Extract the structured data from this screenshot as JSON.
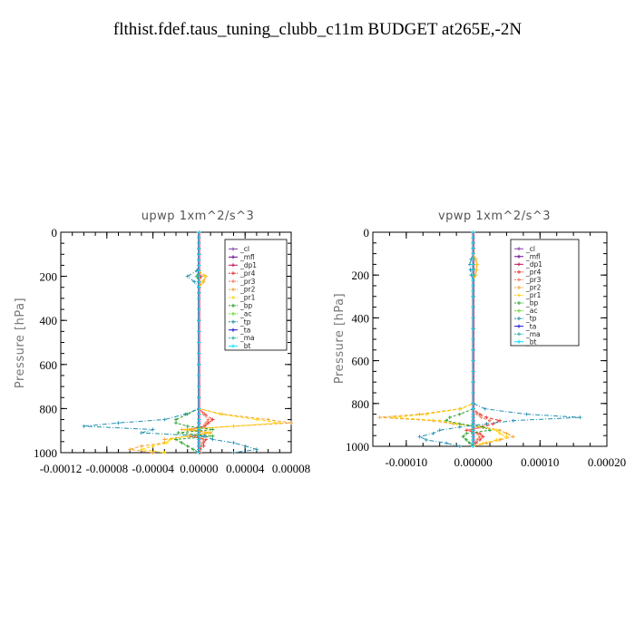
{
  "title": "flthist.fdef.taus_tuning_clubb_c11m  BUDGET at265E,-2N",
  "legend_names": [
    "_cl",
    "_mfl",
    "_dp1",
    "_pr4",
    "_pr3",
    "_pr2",
    "_pr1",
    "_bp",
    "_ac",
    "_tp",
    "_ta",
    "_ma",
    "_bt"
  ],
  "colors": {
    "_cl": "#8a3fa8",
    "_mfl": "#6a0f8e",
    "_dp1": "#c2185b",
    "_pr4": "#e8312a",
    "_pr3": "#f07a5a",
    "_pr2": "#f4a030",
    "_pr1": "#ffd400",
    "_bp": "#2aa02a",
    "_ac": "#66dd22",
    "_tp": "#1f8fb0",
    "_ta": "#1a1ad0",
    "_ma": "#20b2aa",
    "_bt": "#00e5ff"
  },
  "chart_data": [
    {
      "type": "line",
      "title": "upwp   1xm^2/s^3",
      "ylabel": "Pressure [hPa]",
      "xlim": [
        -0.00012,
        8e-05
      ],
      "ylim": [
        1000,
        0
      ],
      "xticks": [
        "-0.00012",
        "-0.00008",
        "-0.00004",
        "0.00000",
        "0.00004",
        "0.00008"
      ],
      "xtick_values": [
        -0.00012,
        -8e-05,
        -4e-05,
        0.0,
        4e-05,
        8e-05
      ],
      "yticks": [
        "0",
        "200",
        "400",
        "600",
        "800",
        "1000"
      ],
      "ytick_values": [
        0,
        200,
        400,
        600,
        800,
        1000
      ],
      "legend": "top-right",
      "pressure": [
        0,
        25,
        50,
        75,
        100,
        125,
        150,
        175,
        200,
        225,
        250,
        275,
        300,
        350,
        400,
        450,
        500,
        550,
        600,
        650,
        700,
        750,
        800,
        825,
        850,
        865,
        880,
        895,
        910,
        925,
        940,
        955,
        970,
        985,
        1000
      ],
      "series": [
        {
          "name": "_cl",
          "values": [
            0,
            0,
            0,
            0,
            0,
            0,
            0,
            0,
            0,
            0,
            0,
            0,
            0,
            0,
            0,
            0,
            0,
            0,
            0,
            0,
            0,
            0,
            0,
            0,
            0,
            0,
            0,
            0,
            0,
            0,
            0,
            0,
            0,
            0,
            0
          ]
        },
        {
          "name": "_mfl",
          "values": [
            0,
            0,
            0,
            0,
            0,
            0,
            0,
            0,
            0,
            0,
            0,
            0,
            0,
            0,
            0,
            0,
            0,
            0,
            0,
            0,
            0,
            0,
            0,
            0,
            0,
            0,
            0,
            0,
            0,
            0,
            0,
            0,
            0,
            0,
            0
          ]
        },
        {
          "name": "_dp1",
          "values": [
            0,
            0,
            0,
            0,
            0,
            0,
            0,
            0,
            0,
            0,
            0,
            0,
            0,
            0,
            0,
            0,
            0,
            0,
            0,
            0,
            0,
            0,
            0,
            0,
            0,
            0,
            0,
            0,
            0,
            0,
            0,
            0,
            0,
            0,
            0
          ]
        },
        {
          "name": "_pr4",
          "values": [
            0,
            0,
            0,
            0,
            0,
            0,
            0,
            0,
            2e-06,
            0,
            0,
            0,
            0,
            0,
            0,
            0,
            0,
            0,
            0,
            0,
            0,
            0,
            0,
            5e-06,
            1.2e-05,
            8e-06,
            5e-06,
            -1e-05,
            1e-05,
            -8e-06,
            6e-06,
            4e-06,
            4e-06,
            1e-06,
            1e-06
          ]
        },
        {
          "name": "_pr3",
          "values": [
            0,
            0,
            0,
            0,
            0,
            0,
            0,
            0,
            1e-06,
            0,
            0,
            0,
            0,
            0,
            0,
            0,
            0,
            0,
            0,
            0,
            0,
            0,
            0,
            4e-06,
            8e-06,
            6e-06,
            4e-06,
            -6e-06,
            6e-06,
            -4e-06,
            4e-06,
            3e-06,
            2e-06,
            1e-06,
            0
          ]
        },
        {
          "name": "_pr2",
          "values": [
            0,
            0,
            0,
            0,
            0,
            0,
            0,
            0,
            6e-06,
            4e-06,
            0,
            0,
            0,
            0,
            0,
            0,
            0,
            0,
            0,
            0,
            0,
            0,
            0,
            2e-05,
            6e-05,
            8e-05,
            3e-05,
            -1.5e-05,
            1e-05,
            -1e-05,
            -3e-05,
            -3e-05,
            -5e-05,
            -6e-05,
            -4e-05
          ]
        },
        {
          "name": "_pr1",
          "values": [
            0,
            0,
            0,
            0,
            0,
            0,
            0,
            0,
            5e-06,
            3e-06,
            0,
            0,
            0,
            0,
            0,
            0,
            0,
            0,
            0,
            0,
            0,
            0,
            0,
            1.8e-05,
            5e-05,
            7e-05,
            3e-05,
            -1.2e-05,
            8e-06,
            -1e-05,
            -2.5e-05,
            -2.8e-05,
            -4e-05,
            -5e-05,
            -3e-05
          ]
        },
        {
          "name": "_bp",
          "values": [
            0,
            0,
            0,
            0,
            0,
            0,
            0,
            0,
            -2e-06,
            0,
            0,
            0,
            0,
            0,
            0,
            0,
            0,
            0,
            0,
            0,
            0,
            0,
            0,
            -1e-05,
            -2e-05,
            -2e-05,
            -1e-05,
            1.2e-05,
            -1.8e-05,
            1.2e-05,
            -2e-05,
            -1.5e-05,
            -1e-05,
            -5e-06,
            0
          ]
        },
        {
          "name": "_ac",
          "values": [
            0,
            0,
            0,
            0,
            0,
            0,
            0,
            0,
            0,
            0,
            0,
            0,
            0,
            0,
            0,
            0,
            0,
            0,
            0,
            0,
            0,
            0,
            0,
            0,
            0,
            0,
            0,
            0,
            0,
            0,
            0,
            0,
            0,
            0,
            0
          ]
        },
        {
          "name": "_tp",
          "values": [
            0,
            0,
            0,
            0,
            0,
            0,
            0,
            -2e-06,
            -1e-05,
            -4e-06,
            0,
            0,
            0,
            0,
            0,
            0,
            0,
            0,
            0,
            0,
            0,
            0,
            0,
            -1.2e-05,
            -3e-05,
            -7e-05,
            -0.0001,
            -4e-05,
            -5e-05,
            5e-06,
            1.2e-05,
            3e-05,
            4e-05,
            5e-05,
            3e-05
          ]
        },
        {
          "name": "_ta",
          "values": [
            0,
            0,
            0,
            0,
            0,
            0,
            0,
            0,
            0,
            0,
            0,
            0,
            0,
            0,
            0,
            0,
            0,
            0,
            0,
            0,
            0,
            0,
            0,
            0,
            0,
            0,
            0,
            0,
            0,
            0,
            0,
            0,
            0,
            0,
            0
          ]
        },
        {
          "name": "_ma",
          "values": [
            0,
            0,
            0,
            0,
            0,
            0,
            0,
            0,
            0,
            0,
            0,
            0,
            0,
            0,
            0,
            0,
            0,
            0,
            0,
            0,
            0,
            0,
            0,
            0,
            0,
            0,
            0,
            0,
            0,
            0,
            0,
            0,
            0,
            0,
            0
          ]
        },
        {
          "name": "_bt",
          "values": [
            0,
            0,
            0,
            0,
            0,
            0,
            0,
            0,
            0,
            0,
            0,
            0,
            0,
            0,
            0,
            0,
            0,
            0,
            0,
            0,
            0,
            0,
            0,
            0,
            0,
            0,
            0,
            0,
            0,
            0,
            0,
            0,
            0,
            0,
            0
          ]
        }
      ]
    },
    {
      "type": "line",
      "title": "vpwp   1xm^2/s^3",
      "ylabel": "Pressure [hPa]",
      "xlim": [
        -0.00015,
        0.0002
      ],
      "ylim": [
        1000,
        0
      ],
      "xticks": [
        "-0.00010",
        "0.00000",
        "0.00010",
        "0.00020"
      ],
      "xtick_values": [
        -0.0001,
        0.0,
        0.0001,
        0.0002
      ],
      "yticks": [
        "0",
        "200",
        "400",
        "600",
        "800",
        "1000"
      ],
      "ytick_values": [
        0,
        200,
        400,
        600,
        800,
        1000
      ],
      "legend": "top-right",
      "pressure": [
        0,
        25,
        50,
        75,
        100,
        125,
        150,
        175,
        200,
        225,
        250,
        275,
        300,
        350,
        400,
        450,
        500,
        550,
        600,
        650,
        700,
        750,
        800,
        825,
        850,
        865,
        880,
        895,
        910,
        925,
        940,
        955,
        970,
        985,
        1000
      ],
      "series": [
        {
          "name": "_cl",
          "values": [
            0,
            0,
            0,
            0,
            0,
            0,
            0,
            0,
            0,
            0,
            0,
            0,
            0,
            0,
            0,
            0,
            0,
            0,
            0,
            0,
            0,
            0,
            0,
            0,
            0,
            0,
            0,
            0,
            0,
            0,
            0,
            0,
            0,
            0,
            0
          ]
        },
        {
          "name": "_mfl",
          "values": [
            0,
            0,
            0,
            0,
            0,
            0,
            0,
            0,
            0,
            0,
            0,
            0,
            0,
            0,
            0,
            0,
            0,
            0,
            0,
            0,
            0,
            0,
            0,
            0,
            0,
            0,
            0,
            0,
            0,
            0,
            0,
            0,
            0,
            0,
            0
          ]
        },
        {
          "name": "_dp1",
          "values": [
            0,
            0,
            0,
            0,
            0,
            0,
            0,
            0,
            0,
            0,
            0,
            0,
            0,
            0,
            0,
            0,
            0,
            0,
            0,
            0,
            0,
            0,
            0,
            0,
            0,
            0,
            0,
            0,
            0,
            0,
            0,
            0,
            0,
            0,
            0
          ]
        },
        {
          "name": "_pr4",
          "values": [
            0,
            0,
            0,
            0,
            0,
            0,
            0,
            0,
            0,
            0,
            0,
            0,
            0,
            0,
            0,
            0,
            0,
            0,
            0,
            0,
            0,
            0,
            0,
            0,
            1e-05,
            2e-05,
            4e-05,
            3e-05,
            1.5e-05,
            -1e-05,
            1e-05,
            1.5e-05,
            1e-05,
            4e-06,
            0
          ]
        },
        {
          "name": "_pr3",
          "values": [
            0,
            0,
            0,
            0,
            0,
            0,
            0,
            0,
            0,
            0,
            0,
            0,
            0,
            0,
            0,
            0,
            0,
            0,
            0,
            0,
            0,
            0,
            0,
            0,
            6e-06,
            1.2e-05,
            2.5e-05,
            2e-05,
            1e-05,
            -6e-06,
            6e-06,
            1e-05,
            6e-06,
            2e-06,
            0
          ]
        },
        {
          "name": "_pr2",
          "values": [
            0,
            0,
            0,
            0,
            0,
            4e-06,
            6e-06,
            5e-06,
            4e-06,
            0,
            0,
            0,
            0,
            0,
            0,
            0,
            0,
            0,
            0,
            0,
            0,
            0,
            0,
            -2e-05,
            -8e-05,
            -0.00014,
            -6e-05,
            -3e-05,
            1.5e-05,
            4e-05,
            5e-05,
            6e-05,
            4e-05,
            2e-05,
            0
          ]
        },
        {
          "name": "_pr1",
          "values": [
            0,
            0,
            0,
            0,
            0,
            3e-06,
            5e-06,
            4e-06,
            3e-06,
            0,
            0,
            0,
            0,
            0,
            0,
            0,
            0,
            0,
            0,
            0,
            0,
            0,
            0,
            -1.8e-05,
            -7e-05,
            -0.00012,
            -5e-05,
            -2.5e-05,
            1.2e-05,
            3.5e-05,
            4e-05,
            5e-05,
            3.5e-05,
            1.5e-05,
            0
          ]
        },
        {
          "name": "_bp",
          "values": [
            0,
            0,
            0,
            0,
            0,
            0,
            0,
            0,
            0,
            0,
            0,
            0,
            0,
            0,
            0,
            0,
            0,
            0,
            0,
            0,
            0,
            0,
            0,
            0,
            -2e-05,
            -3.5e-05,
            -4e-05,
            -2e-05,
            1.5e-05,
            2.5e-05,
            -1e-05,
            -1.5e-05,
            -1e-05,
            -5e-06,
            0
          ]
        },
        {
          "name": "_ac",
          "values": [
            0,
            0,
            0,
            0,
            0,
            0,
            0,
            0,
            0,
            0,
            0,
            0,
            0,
            0,
            0,
            0,
            0,
            0,
            0,
            0,
            0,
            0,
            0,
            0,
            0,
            0,
            0,
            0,
            0,
            0,
            0,
            0,
            0,
            0,
            0
          ]
        },
        {
          "name": "_tp",
          "values": [
            0,
            0,
            0,
            0,
            0,
            -3e-06,
            -5e-06,
            -4e-06,
            -3e-06,
            0,
            0,
            0,
            0,
            0,
            0,
            0,
            0,
            0,
            0,
            0,
            0,
            0,
            0,
            1.8e-05,
            8e-05,
            0.00016,
            6e-05,
            2e-05,
            -2e-05,
            -5e-05,
            -6e-05,
            -8e-05,
            -7e-05,
            -4e-05,
            -2e-05
          ]
        },
        {
          "name": "_ta",
          "values": [
            0,
            0,
            0,
            0,
            0,
            0,
            0,
            0,
            0,
            0,
            0,
            0,
            0,
            0,
            0,
            0,
            0,
            0,
            0,
            0,
            0,
            0,
            0,
            0,
            0,
            0,
            0,
            0,
            0,
            0,
            0,
            0,
            0,
            0,
            0
          ]
        },
        {
          "name": "_ma",
          "values": [
            0,
            0,
            0,
            0,
            0,
            0,
            0,
            0,
            0,
            0,
            0,
            0,
            0,
            0,
            0,
            0,
            0,
            0,
            0,
            0,
            0,
            0,
            0,
            0,
            0,
            0,
            0,
            0,
            0,
            0,
            0,
            0,
            0,
            0,
            0
          ]
        },
        {
          "name": "_bt",
          "values": [
            0,
            0,
            0,
            0,
            0,
            0,
            0,
            0,
            0,
            0,
            0,
            0,
            0,
            0,
            0,
            0,
            0,
            0,
            0,
            0,
            0,
            0,
            0,
            0,
            0,
            0,
            0,
            0,
            0,
            0,
            0,
            0,
            0,
            0,
            0
          ]
        }
      ]
    }
  ]
}
